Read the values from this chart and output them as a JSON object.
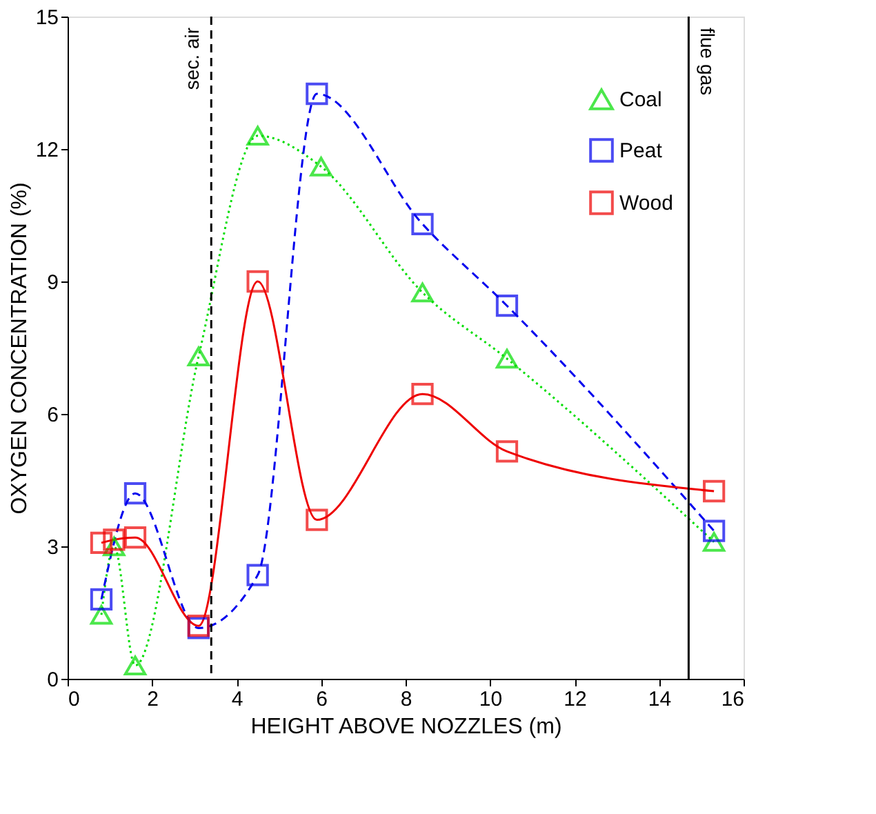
{
  "chart_data": {
    "type": "line",
    "xlabel": "HEIGHT ABOVE NOZZLES (m)",
    "ylabel": "OXYGEN CONCENTRATION (%)",
    "xlim": [
      0,
      16
    ],
    "xticks": [
      0,
      2,
      4,
      6,
      8,
      10,
      12,
      14,
      16
    ],
    "ylim": [
      0,
      15
    ],
    "yticks": [
      0,
      3,
      6,
      9,
      12,
      15
    ],
    "grid": false,
    "legend": "top right",
    "series": [
      {
        "name": "Coal",
        "color": "#00dd00",
        "marker": "triangle",
        "line_style": "dotted",
        "x": [
          0.8,
          1.1,
          1.6,
          3.1,
          4.5,
          6.0,
          8.4,
          10.4,
          15.3
        ],
        "values": [
          1.45,
          3.0,
          0.3,
          7.3,
          12.3,
          11.6,
          8.75,
          7.25,
          3.1
        ]
      },
      {
        "name": "Peat",
        "color": "#0000ee",
        "marker": "square",
        "line_style": "dashed",
        "x": [
          0.8,
          1.6,
          3.1,
          4.5,
          5.9,
          8.4,
          10.4,
          15.3
        ],
        "values": [
          1.8,
          4.2,
          1.15,
          2.35,
          13.25,
          10.3,
          8.45,
          3.35
        ]
      },
      {
        "name": "Wood",
        "color": "#ee0000",
        "marker": "square",
        "line_style": "solid",
        "x": [
          0.8,
          1.1,
          1.6,
          3.1,
          4.5,
          5.9,
          8.4,
          10.4,
          15.3
        ],
        "values": [
          3.08,
          3.15,
          3.2,
          1.2,
          9.0,
          3.6,
          6.45,
          5.15,
          4.25
        ]
      }
    ],
    "ref_lines": [
      {
        "axis": "x",
        "value": 3.4,
        "label": "sec. air",
        "line_style": "dashed",
        "color": "#000000"
      },
      {
        "axis": "x",
        "value": 14.7,
        "label": "flue gas",
        "line_style": "solid",
        "color": "#000000"
      }
    ]
  }
}
